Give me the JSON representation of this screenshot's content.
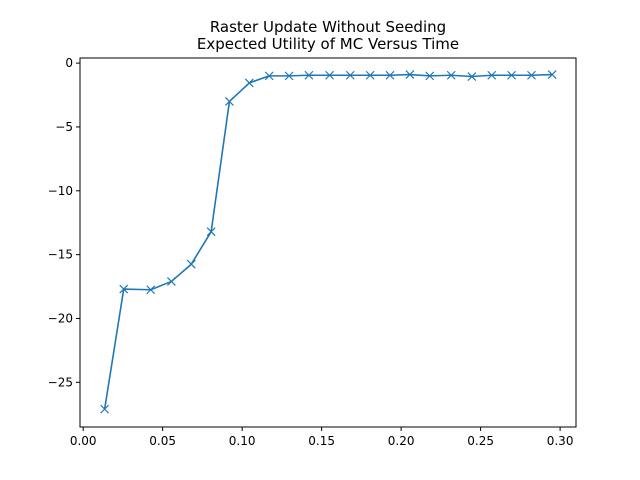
{
  "chart_data": {
    "type": "line",
    "title": "Raster Update Without Seeding",
    "subtitle": "Expected Utility of MC Versus Time",
    "xlabel": "",
    "ylabel": "",
    "xlim": [
      -0.002,
      0.31
    ],
    "ylim": [
      -28.5,
      0.4
    ],
    "x_ticks": [
      0.0,
      0.05,
      0.1,
      0.15,
      0.2,
      0.25,
      0.3
    ],
    "x_tick_labels": [
      "0.00",
      "0.05",
      "0.10",
      "0.15",
      "0.20",
      "0.25",
      "0.30"
    ],
    "y_ticks": [
      0,
      -5,
      -10,
      -15,
      -20,
      -25
    ],
    "y_tick_labels": [
      "0",
      "−5",
      "−10",
      "−15",
      "−20",
      "−25"
    ],
    "grid": false,
    "series": [
      {
        "color": "#1f77b4",
        "marker": "x",
        "x": [
          0.0135,
          0.0255,
          0.0425,
          0.0555,
          0.068,
          0.0805,
          0.092,
          0.1045,
          0.117,
          0.1295,
          0.142,
          0.155,
          0.168,
          0.1805,
          0.193,
          0.2055,
          0.218,
          0.2315,
          0.2445,
          0.257,
          0.2695,
          0.282,
          0.295
        ],
        "y": [
          -27.1,
          -17.7,
          -17.75,
          -17.1,
          -15.75,
          -13.2,
          -3.0,
          -1.55,
          -1.0,
          -1.0,
          -0.95,
          -0.95,
          -0.95,
          -0.95,
          -0.95,
          -0.9,
          -1.0,
          -0.95,
          -1.05,
          -0.95,
          -0.95,
          -0.95,
          -0.9
        ]
      }
    ]
  }
}
